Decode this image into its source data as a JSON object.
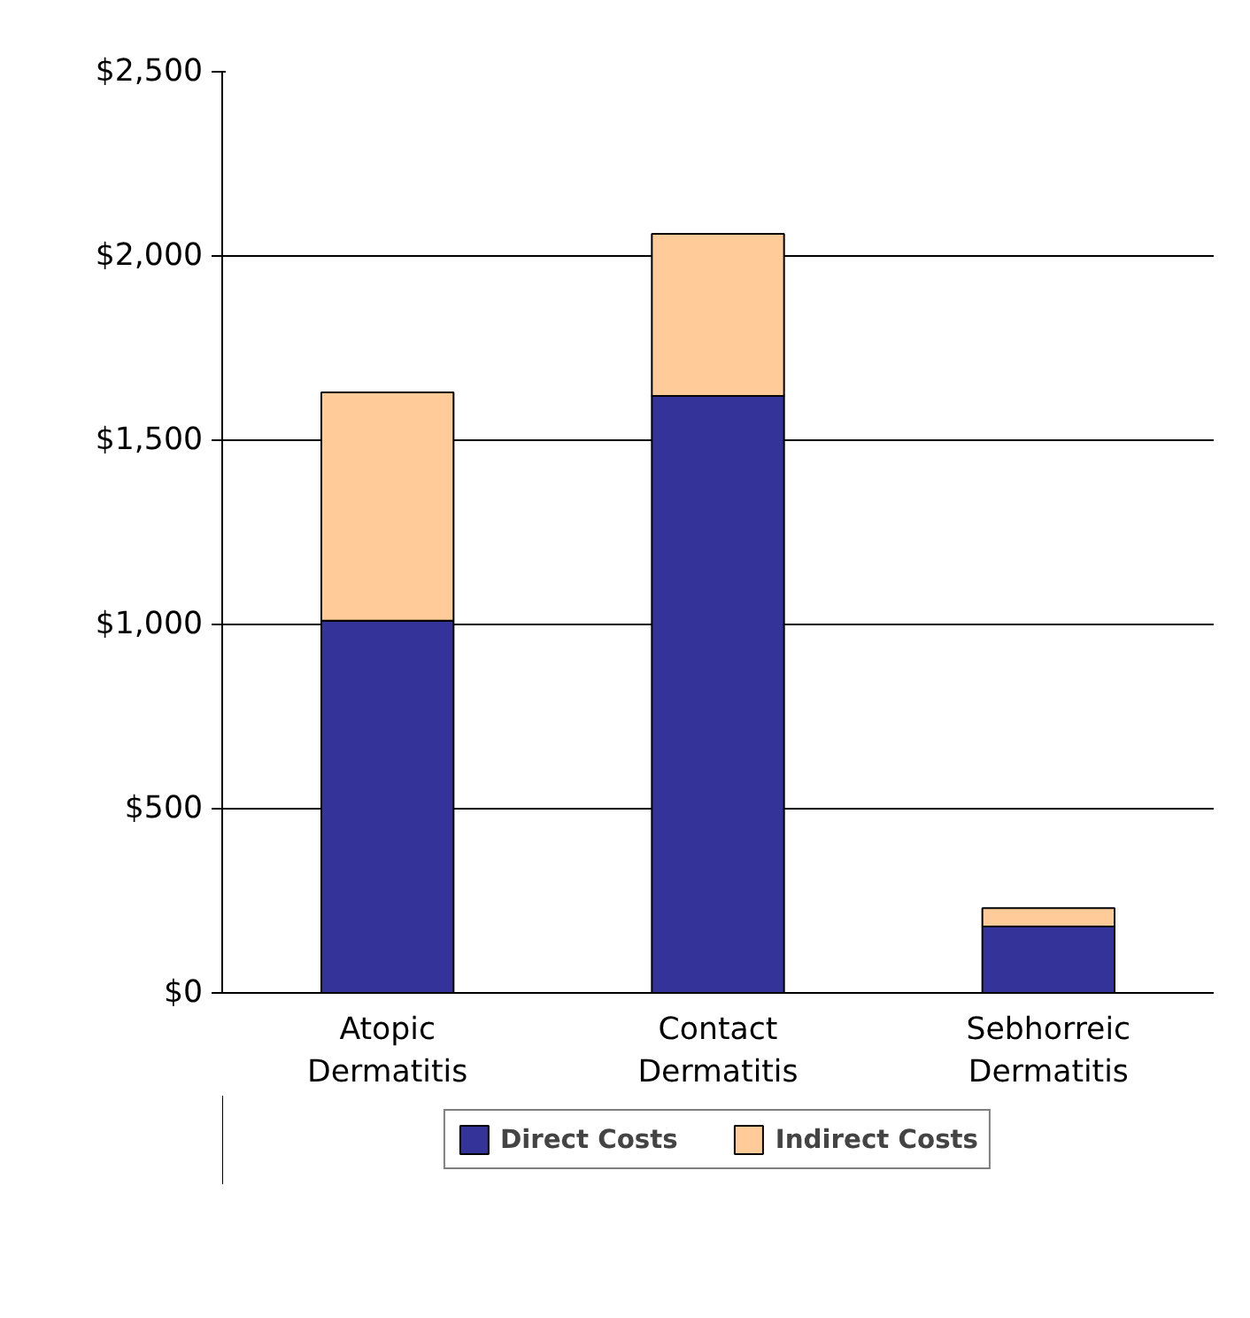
{
  "chart_data": {
    "type": "bar",
    "stacked": true,
    "categories": [
      "Atopic Dermatitis",
      "Contact Dermatitis",
      "Sebhorreic Dermatitis"
    ],
    "series": [
      {
        "name": "Direct Costs",
        "color": "#333399",
        "values": [
          1010,
          1620,
          180
        ]
      },
      {
        "name": "Indirect Costs",
        "color": "#ffcc99",
        "values": [
          620,
          440,
          50
        ]
      }
    ],
    "ylim": [
      0,
      2500
    ],
    "yticks": [
      {
        "value": 0,
        "label": "$0"
      },
      {
        "value": 500,
        "label": "$500"
      },
      {
        "value": 1000,
        "label": "$1,000"
      },
      {
        "value": 1500,
        "label": "$1,500"
      },
      {
        "value": 2000,
        "label": "$2,000"
      },
      {
        "value": 2500,
        "label": "$2,500"
      }
    ],
    "grid": "y",
    "legend": "bottom"
  }
}
